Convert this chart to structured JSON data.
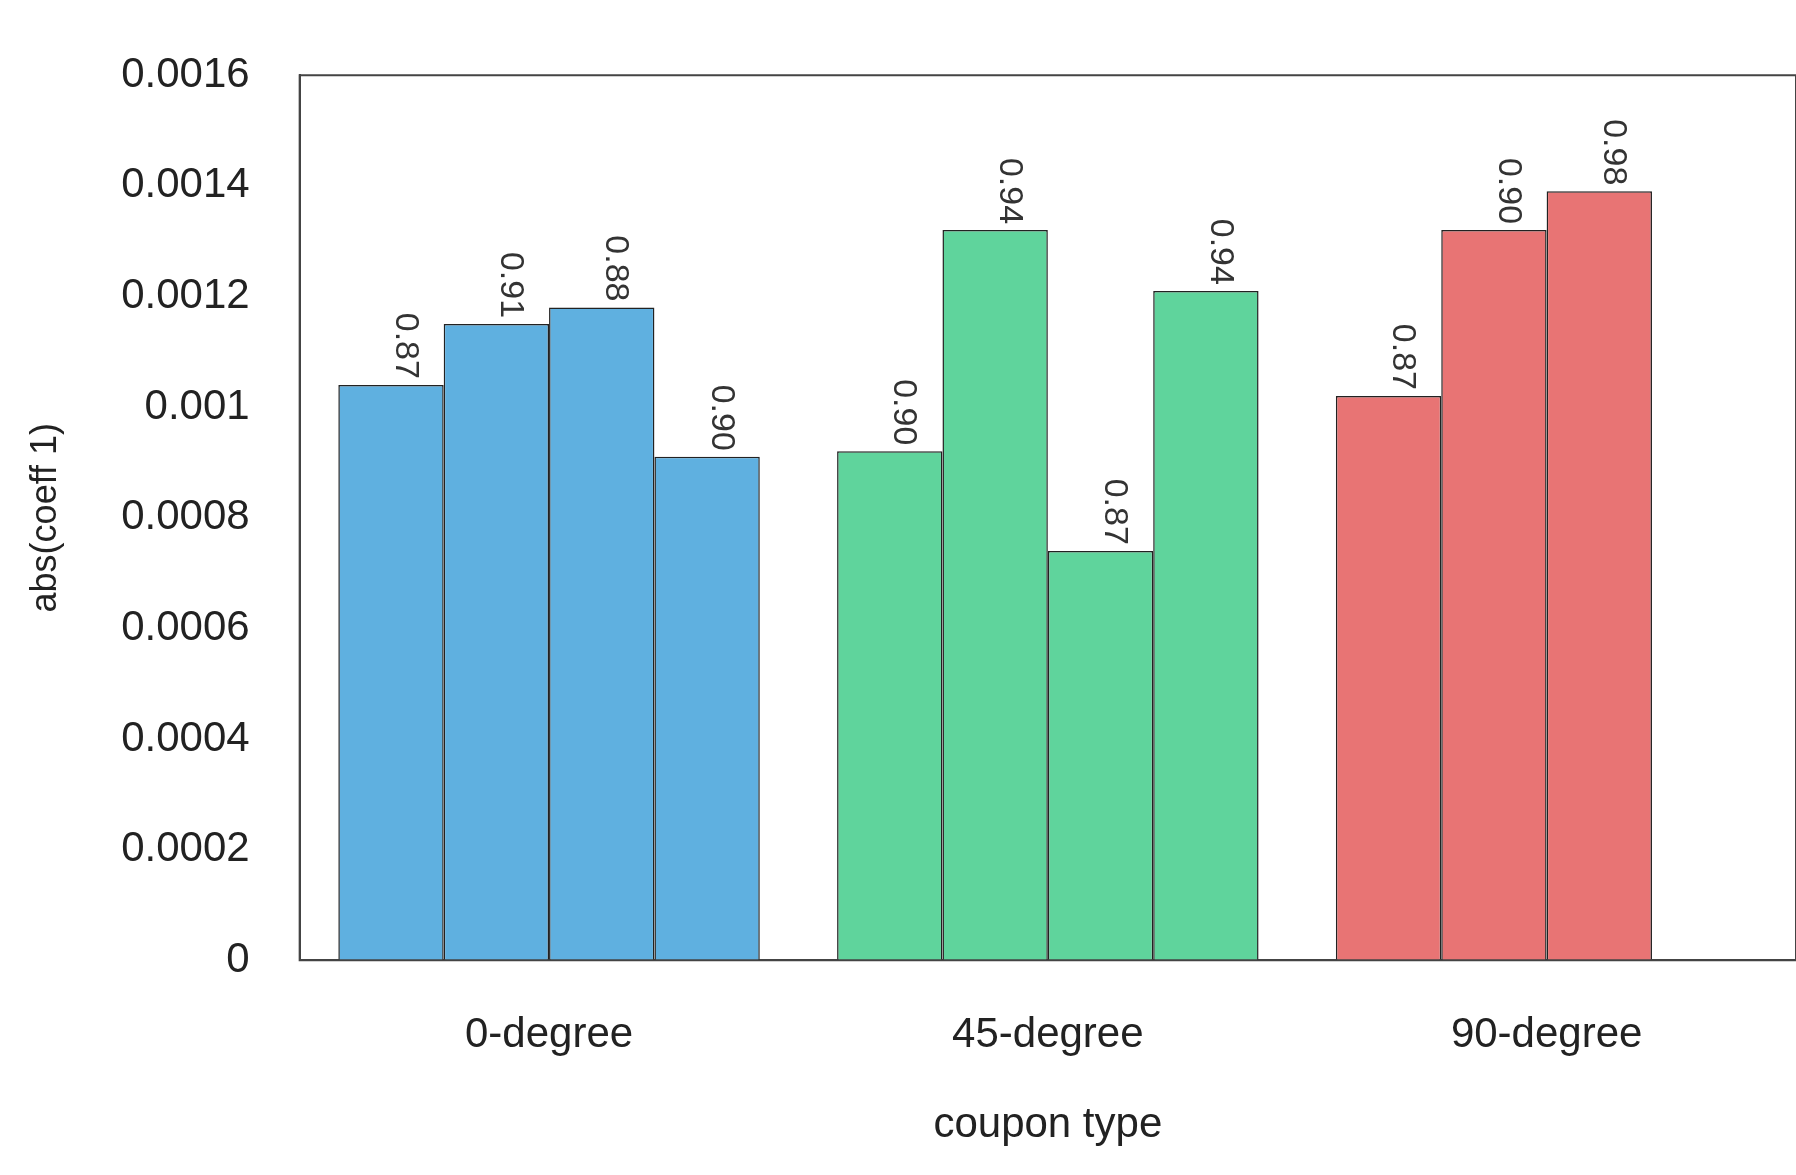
{
  "chart_data": {
    "type": "bar",
    "xlabel": "coupon type",
    "ylabel": "abs(coeff 1)",
    "categories": [
      "0-degree",
      "45-degree",
      "90-degree"
    ],
    "series": [
      {
        "colors": [
          "#5fb0e0",
          "#5fd49c",
          "#e87474"
        ],
        "values": [
          0.00104,
          0.00092,
          0.00102
        ]
      },
      {
        "colors": [
          "#5fb0e0",
          "#5fd49c",
          "#e87474"
        ],
        "values": [
          0.00115,
          0.00132,
          0.00132
        ]
      },
      {
        "colors": [
          "#5fb0e0",
          "#5fd49c",
          "#e87474"
        ],
        "values": [
          0.00118,
          0.00074,
          0.00139
        ]
      },
      {
        "colors": [
          "#5fb0e0",
          "#5fd49c",
          "#e87474"
        ],
        "values": [
          0.00091,
          0.00121,
          null
        ]
      }
    ],
    "annotations": [
      "0.87",
      "0.91",
      "0.88",
      "0.90",
      "0.90",
      "0.94",
      "0.87",
      "0.94",
      "0.87",
      "0.90",
      "0.98"
    ],
    "ylim": [
      0,
      0.0016
    ],
    "yticks": [
      0,
      0.0002,
      0.0004,
      0.0006,
      0.0008,
      0.001,
      0.0012,
      0.0014,
      0.0016
    ],
    "grid": false,
    "legend": false
  }
}
